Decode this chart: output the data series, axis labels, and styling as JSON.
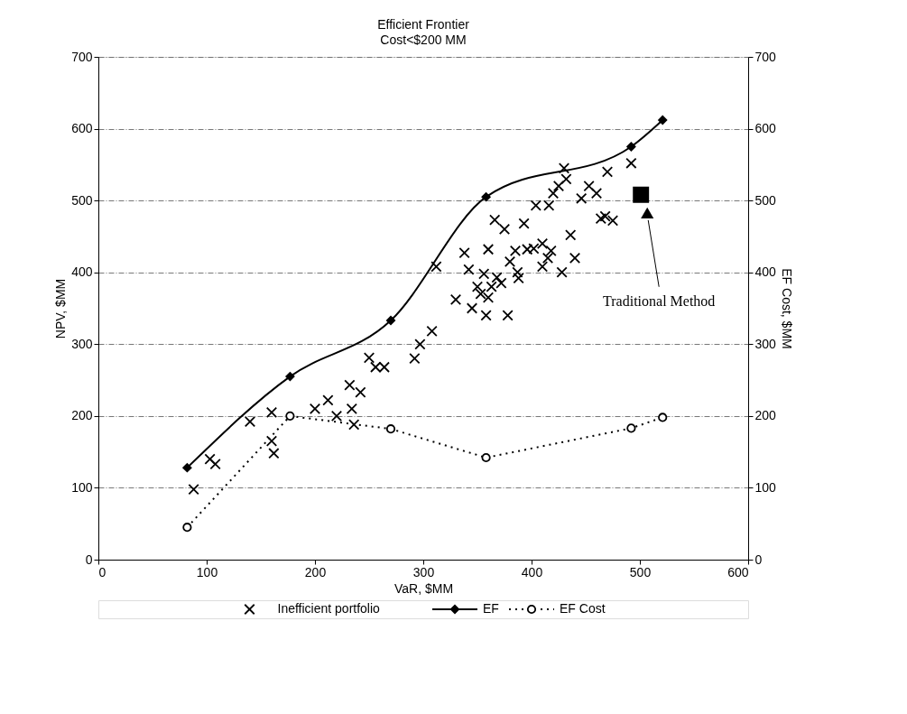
{
  "chart_data": {
    "type": "scatter",
    "title": "Efficient Frontier",
    "subtitle": "Cost<$200 MM",
    "xlabel": "VaR, $MM",
    "ylabel": "NPV, $MM",
    "y2label": "EF Cost, $MM",
    "xlim": [
      0,
      600
    ],
    "xticks": [
      0,
      100,
      200,
      300,
      400,
      500,
      600
    ],
    "ylim": [
      0,
      700
    ],
    "yticks": [
      0,
      100,
      200,
      300,
      400,
      500,
      600,
      700
    ],
    "y2lim": [
      0,
      700
    ],
    "y2ticks": [
      0,
      100,
      200,
      300,
      400,
      500,
      600,
      700
    ],
    "grid": "y",
    "legend": "bottom",
    "annotations": [
      "Traditional Method"
    ],
    "series": [
      {
        "name": "Inefficient portfolio",
        "type": "scatter",
        "marker": "cross",
        "color": "#000000",
        "x": [
          88,
          103,
          108,
          140,
          160,
          160,
          162,
          200,
          212,
          220,
          232,
          234,
          236,
          242,
          250,
          256,
          264,
          292,
          297,
          308,
          312,
          330,
          338,
          342,
          345,
          350,
          353,
          356,
          358,
          360,
          360,
          363,
          366,
          368,
          372,
          375,
          378,
          380,
          385,
          387,
          388,
          393,
          396,
          402,
          404,
          410,
          410,
          415,
          416,
          418,
          420,
          425,
          428,
          430,
          432,
          436,
          440,
          446,
          453,
          460,
          464,
          468,
          470,
          475,
          492
        ],
        "values": [
          98,
          140,
          133,
          192,
          205,
          165,
          148,
          210,
          222,
          200,
          243,
          210,
          188,
          233,
          281,
          268,
          268,
          280,
          300,
          318,
          408,
          362,
          427,
          404,
          350,
          380,
          370,
          398,
          340,
          365,
          432,
          380,
          473,
          393,
          385,
          460,
          340,
          415,
          430,
          400,
          392,
          468,
          432,
          433,
          493,
          408,
          440,
          420,
          493,
          430,
          510,
          520,
          400,
          545,
          530,
          452,
          420,
          503,
          520,
          510,
          475,
          478,
          540,
          472,
          552
        ]
      },
      {
        "name": "EF",
        "type": "line",
        "marker": "diamond",
        "line_style": "solid",
        "color": "#000000",
        "x": [
          82,
          177,
          270,
          358,
          492,
          521
        ],
        "values": [
          128,
          255,
          333,
          505,
          575,
          612
        ]
      },
      {
        "name": "EF Cost",
        "type": "line",
        "marker": "circle",
        "line_style": "dotted",
        "color": "#000000",
        "x": [
          82,
          177,
          270,
          358,
          492,
          521
        ],
        "values": [
          45,
          200,
          182,
          142,
          183,
          198
        ]
      },
      {
        "type": "scatter",
        "marker": "square",
        "color": "#000000",
        "x": [
          501
        ],
        "values": [
          508
        ]
      }
    ]
  }
}
